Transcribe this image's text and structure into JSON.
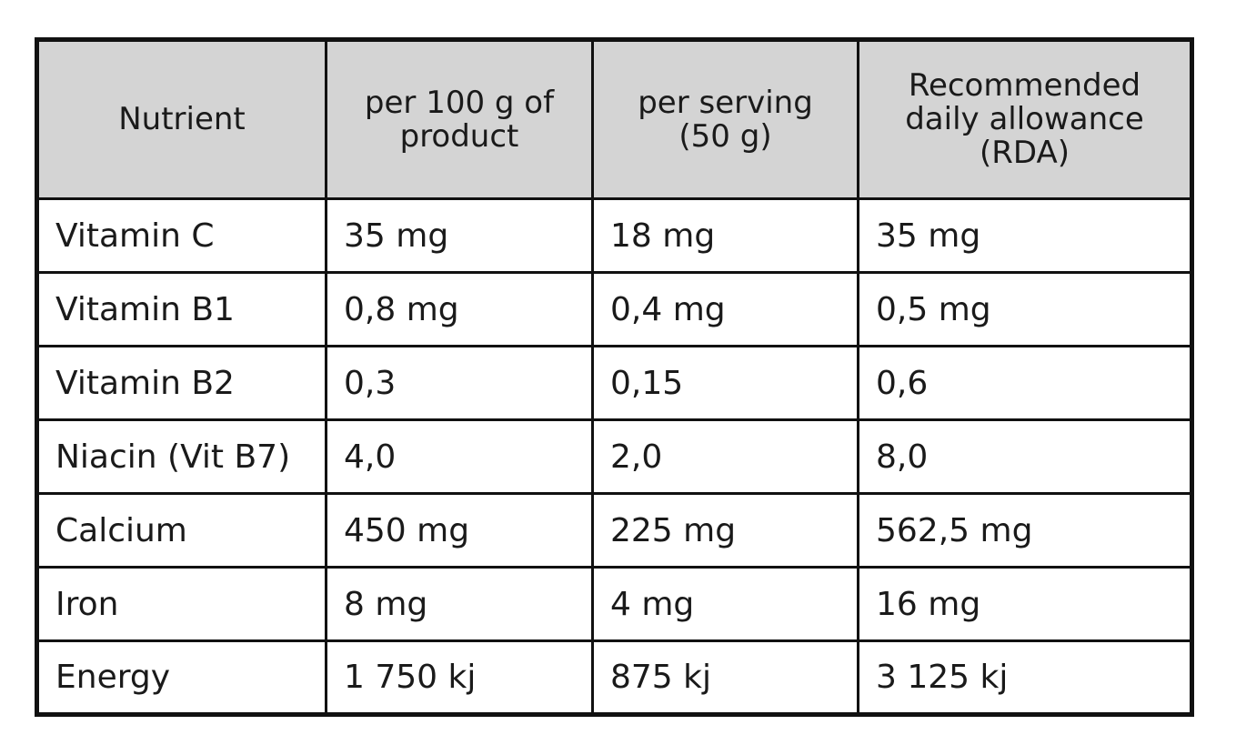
{
  "table": {
    "headers": [
      "Nutrient",
      "per 100 g of\nproduct",
      "per serving\n(50 g)",
      "Recommended\ndaily allowance\n(RDA)"
    ],
    "rows": [
      [
        "Vitamin C",
        "35 mg",
        "18 mg",
        "35 mg"
      ],
      [
        "Vitamin B1",
        "0,8 mg",
        "0,4 mg",
        "0,5 mg"
      ],
      [
        "Vitamin B2",
        "0,3",
        "0,15",
        "0,6"
      ],
      [
        "Niacin (Vit B7)",
        "4,0",
        "2,0",
        "8,0"
      ],
      [
        "Calcium",
        "450 mg",
        "225 mg",
        "562,5 mg"
      ],
      [
        "Iron",
        "8 mg",
        "4 mg",
        "16 mg"
      ],
      [
        "Energy",
        "1 750 kj",
        "875 kj",
        "3 125 kj"
      ]
    ]
  },
  "colors": {
    "header_background": "#d4d4d4",
    "border": "#111111",
    "text": "#1a1a1a"
  }
}
